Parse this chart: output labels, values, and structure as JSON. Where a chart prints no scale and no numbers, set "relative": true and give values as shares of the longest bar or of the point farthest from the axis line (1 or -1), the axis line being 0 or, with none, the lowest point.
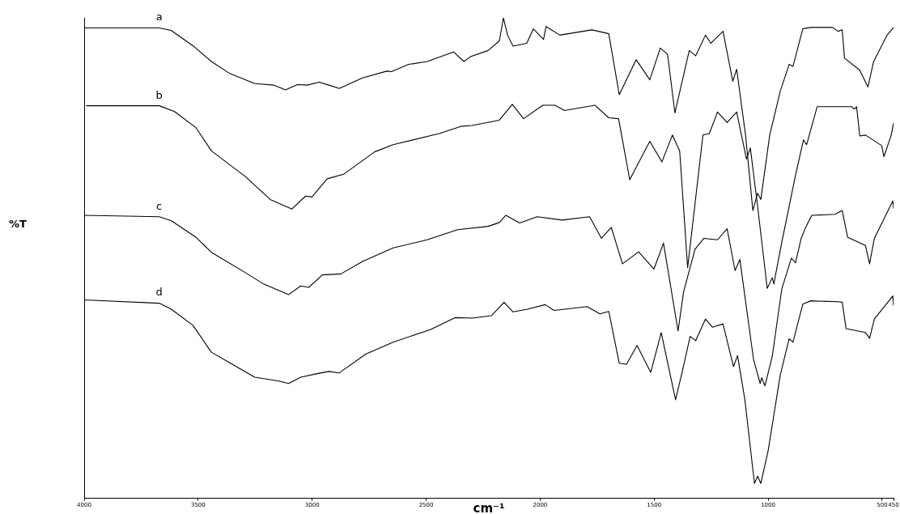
{
  "chart_data": {
    "type": "line",
    "relative": true,
    "xlabel": "cm⁻¹",
    "ylabel": "%T",
    "xlim": [
      4000,
      450
    ],
    "xticks": [
      4000,
      3500,
      3000,
      2500,
      2000,
      1500,
      1000,
      500,
      450
    ],
    "legend": false,
    "series": [
      {
        "name": "a",
        "color": "#000000",
        "x": [
          4000,
          3671,
          3619,
          3523,
          3442,
          3361,
          3252,
          3170,
          3117,
          3064,
          3022,
          2969,
          2927,
          2881,
          2779,
          2673,
          2652,
          2577,
          2496,
          2380,
          2334,
          2306,
          2228,
          2179,
          2161,
          2143,
          2119,
          2059,
          2030,
          1985,
          1974,
          1914,
          1773,
          1699,
          1653,
          1579,
          1519,
          1473,
          1441,
          1409,
          1346,
          1318,
          1275,
          1251,
          1198,
          1155,
          1138,
          1099,
          1067,
          1046,
          1032,
          993,
          947,
          908,
          891,
          848,
          813,
          718,
          693,
          675,
          665,
          598,
          562,
          538,
          478,
          450
        ],
        "values": [
          0.979,
          0.979,
          0.974,
          0.942,
          0.909,
          0.884,
          0.863,
          0.86,
          0.85,
          0.861,
          0.86,
          0.866,
          0.86,
          0.853,
          0.875,
          0.889,
          0.888,
          0.903,
          0.909,
          0.929,
          0.909,
          0.919,
          0.932,
          0.952,
          1.0,
          0.964,
          0.941,
          0.947,
          0.977,
          0.955,
          0.982,
          0.964,
          0.975,
          0.967,
          0.84,
          0.913,
          0.871,
          0.937,
          0.924,
          0.802,
          0.932,
          0.921,
          0.964,
          0.947,
          0.972,
          0.868,
          0.893,
          0.756,
          0.599,
          0.635,
          0.622,
          0.756,
          0.847,
          0.903,
          0.899,
          0.977,
          0.98,
          0.98,
          0.972,
          0.975,
          0.916,
          0.891,
          0.856,
          0.908,
          0.964,
          0.98
        ]
      },
      {
        "name": "b",
        "color": "#000000",
        "x": [
          3990,
          3671,
          3604,
          3509,
          3442,
          3294,
          3184,
          3089,
          3029,
          3001,
          2934,
          2860,
          2726,
          2645,
          2443,
          2348,
          2299,
          2179,
          2122,
          2073,
          1988,
          1935,
          1893,
          1759,
          1699,
          1656,
          1607,
          1519,
          1466,
          1420,
          1388,
          1353,
          1286,
          1258,
          1222,
          1180,
          1138,
          1095,
          1078,
          1046,
          1004,
          982,
          975,
          940,
          880,
          845,
          831,
          785,
          633,
          622,
          612,
          598,
          573,
          502,
          492,
          460,
          450
        ],
        "values": [
          0.817,
          0.817,
          0.805,
          0.771,
          0.723,
          0.67,
          0.622,
          0.602,
          0.629,
          0.627,
          0.665,
          0.675,
          0.721,
          0.736,
          0.759,
          0.774,
          0.776,
          0.787,
          0.82,
          0.79,
          0.818,
          0.818,
          0.807,
          0.818,
          0.792,
          0.79,
          0.663,
          0.743,
          0.7,
          0.756,
          0.723,
          0.48,
          0.756,
          0.759,
          0.804,
          0.782,
          0.804,
          0.706,
          0.729,
          0.607,
          0.437,
          0.459,
          0.446,
          0.533,
          0.672,
          0.746,
          0.736,
          0.815,
          0.815,
          0.81,
          0.815,
          0.754,
          0.756,
          0.734,
          0.711,
          0.756,
          0.781
        ]
      },
      {
        "name": "c",
        "color": "#000000",
        "x": [
          4000,
          3671,
          3619,
          3509,
          3442,
          3294,
          3213,
          3103,
          3050,
          3015,
          2955,
          2874,
          2779,
          2645,
          2496,
          2362,
          2228,
          2179,
          2150,
          2090,
          2013,
          1903,
          1783,
          1731,
          1688,
          1639,
          1568,
          1501,
          1459,
          1395,
          1371,
          1321,
          1282,
          1222,
          1180,
          1145,
          1124,
          1064,
          1035,
          1028,
          1014,
          982,
          940,
          898,
          880,
          855,
          838,
          809,
          707,
          675,
          651,
          573,
          555,
          534,
          453,
          450
        ],
        "values": [
          0.589,
          0.586,
          0.578,
          0.543,
          0.512,
          0.47,
          0.446,
          0.424,
          0.442,
          0.439,
          0.465,
          0.467,
          0.493,
          0.521,
          0.538,
          0.559,
          0.566,
          0.574,
          0.589,
          0.573,
          0.586,
          0.579,
          0.586,
          0.541,
          0.564,
          0.488,
          0.513,
          0.477,
          0.531,
          0.348,
          0.429,
          0.518,
          0.541,
          0.538,
          0.561,
          0.474,
          0.497,
          0.289,
          0.239,
          0.251,
          0.234,
          0.295,
          0.436,
          0.5,
          0.49,
          0.541,
          0.561,
          0.589,
          0.591,
          0.599,
          0.543,
          0.526,
          0.488,
          0.541,
          0.619,
          0.604
        ]
      },
      {
        "name": "d",
        "color": "#000000",
        "x": [
          4000,
          3671,
          3619,
          3523,
          3442,
          3361,
          3252,
          3146,
          3103,
          3050,
          2983,
          2927,
          2881,
          2765,
          2645,
          2482,
          2373,
          2299,
          2214,
          2158,
          2119,
          2059,
          1978,
          1939,
          1794,
          1738,
          1699,
          1653,
          1621,
          1575,
          1515,
          1469,
          1406,
          1378,
          1342,
          1318,
          1275,
          1244,
          1198,
          1152,
          1134,
          1102,
          1060,
          1046,
          1032,
          1000,
          947,
          908,
          891,
          848,
          813,
          693,
          675,
          658,
          573,
          555,
          534,
          453,
          450
        ],
        "values": [
          0.413,
          0.406,
          0.394,
          0.36,
          0.304,
          0.282,
          0.252,
          0.244,
          0.239,
          0.252,
          0.259,
          0.264,
          0.261,
          0.3,
          0.325,
          0.351,
          0.376,
          0.375,
          0.38,
          0.408,
          0.388,
          0.393,
          0.403,
          0.391,
          0.399,
          0.384,
          0.389,
          0.281,
          0.279,
          0.318,
          0.262,
          0.345,
          0.205,
          0.261,
          0.337,
          0.328,
          0.373,
          0.356,
          0.363,
          0.274,
          0.297,
          0.205,
          0.031,
          0.046,
          0.031,
          0.099,
          0.256,
          0.332,
          0.325,
          0.404,
          0.411,
          0.409,
          0.408,
          0.353,
          0.345,
          0.333,
          0.373,
          0.421,
          0.401
        ]
      }
    ]
  }
}
